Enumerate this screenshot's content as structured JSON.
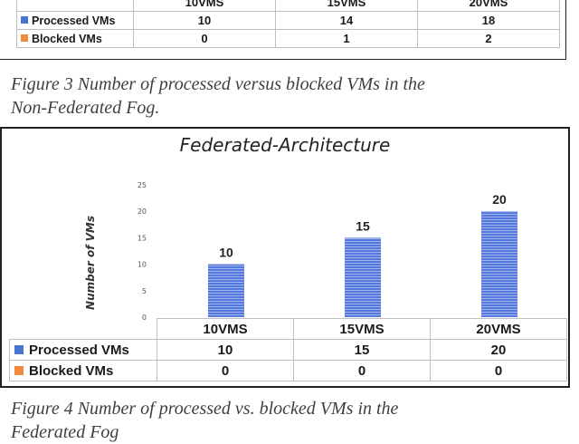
{
  "colors": {
    "processed": "#4a74d1",
    "blocked": "#f28a3d",
    "bar": "#5578dc"
  },
  "top_table": {
    "columns": [
      "10VMS",
      "15VMS",
      "20VMS"
    ],
    "rows": [
      {
        "label": "Processed VMs",
        "values": [
          "10",
          "14",
          "18"
        ]
      },
      {
        "label": "Blocked VMs",
        "values": [
          "0",
          "1",
          "2"
        ]
      }
    ]
  },
  "caption3": {
    "line1": "Figure 3 Number of processed versus blocked VMs in the",
    "line2": "Non-Federated Fog."
  },
  "chart_data": {
    "type": "bar",
    "title": "Federated-Architecture",
    "ylabel": "Number of VMs",
    "categories": [
      "10VMS",
      "15VMS",
      "20VMS"
    ],
    "series": [
      {
        "name": "Processed VMs",
        "values": [
          10,
          15,
          20
        ]
      },
      {
        "name": "Blocked VMs",
        "values": [
          0,
          0,
          0
        ]
      }
    ],
    "ylim": [
      0,
      25
    ],
    "yticks": [
      0,
      5,
      10,
      15,
      20,
      25
    ],
    "legend": "data-table-below",
    "grid": false
  },
  "bottom_table": {
    "rows": [
      {
        "label": "Processed VMs",
        "values": [
          "10",
          "15",
          "20"
        ]
      },
      {
        "label": "Blocked VMs",
        "values": [
          "0",
          "0",
          "0"
        ]
      }
    ]
  },
  "caption4": {
    "line1": "Figure 4 Number of processed vs. blocked VMs in the",
    "line2": "Federated Fog"
  }
}
